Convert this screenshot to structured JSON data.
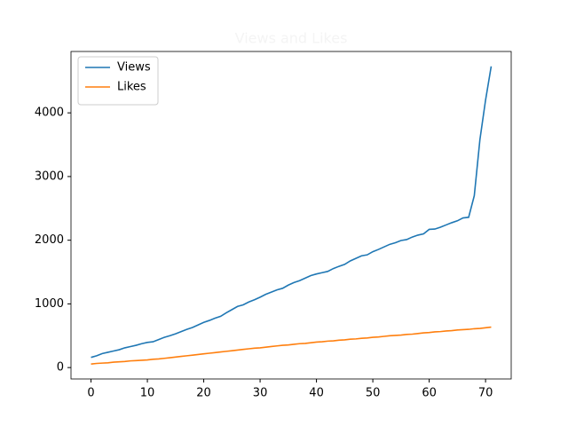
{
  "chart_data": {
    "type": "line",
    "title": "Views and Likes",
    "x": [
      0,
      1,
      2,
      3,
      4,
      5,
      6,
      7,
      8,
      9,
      10,
      11,
      12,
      13,
      14,
      15,
      16,
      17,
      18,
      19,
      20,
      21,
      22,
      23,
      24,
      25,
      26,
      27,
      28,
      29,
      30,
      31,
      32,
      33,
      34,
      35,
      36,
      37,
      38,
      39,
      40,
      41,
      42,
      43,
      44,
      45,
      46,
      47,
      48,
      49,
      50,
      51,
      52,
      53,
      54,
      55,
      56,
      57,
      58,
      59,
      60,
      61,
      62,
      63,
      64,
      65,
      66,
      67,
      68,
      69,
      70,
      71
    ],
    "series": [
      {
        "name": "Views",
        "color": "#1f77b4",
        "values": [
          160,
          185,
          220,
          240,
          260,
          280,
          310,
          330,
          350,
          375,
          395,
          405,
          440,
          475,
          500,
          530,
          565,
          600,
          630,
          670,
          710,
          740,
          775,
          805,
          860,
          910,
          960,
          985,
          1030,
          1065,
          1105,
          1150,
          1185,
          1220,
          1245,
          1295,
          1335,
          1365,
          1405,
          1445,
          1470,
          1490,
          1510,
          1555,
          1590,
          1620,
          1675,
          1715,
          1755,
          1770,
          1820,
          1855,
          1895,
          1935,
          1960,
          1995,
          2010,
          2050,
          2080,
          2100,
          2170,
          2175,
          2205,
          2240,
          2275,
          2305,
          2350,
          2360,
          2700,
          3580,
          4200,
          4730
        ]
      },
      {
        "name": "Likes",
        "color": "#ff7f0e",
        "values": [
          55,
          65,
          70,
          75,
          85,
          90,
          95,
          105,
          110,
          115,
          120,
          130,
          135,
          145,
          155,
          165,
          175,
          185,
          195,
          205,
          215,
          225,
          235,
          245,
          255,
          265,
          275,
          285,
          295,
          305,
          310,
          320,
          330,
          340,
          350,
          355,
          365,
          375,
          380,
          390,
          400,
          405,
          415,
          420,
          430,
          435,
          445,
          450,
          460,
          465,
          475,
          480,
          490,
          500,
          505,
          510,
          520,
          525,
          535,
          545,
          550,
          560,
          565,
          575,
          580,
          590,
          595,
          600,
          610,
          615,
          625,
          635
        ]
      }
    ],
    "xlim": [
      -3.55,
      74.55
    ],
    "xticks": [
      0,
      10,
      20,
      30,
      40,
      50,
      60,
      70
    ],
    "ylim": [
      -179,
      4964
    ],
    "yticks": [
      0,
      1000,
      2000,
      3000,
      4000
    ],
    "legend": "upper left"
  }
}
